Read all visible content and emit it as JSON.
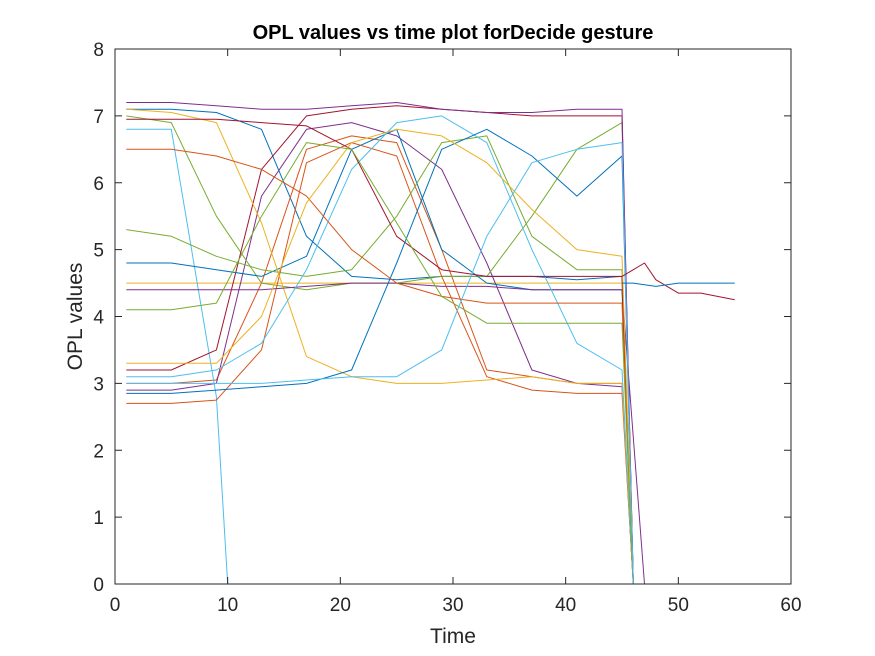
{
  "chart_data": {
    "type": "line",
    "title": "OPL values vs time plot forDecide gesture",
    "xlabel": "Time",
    "ylabel": "OPL values",
    "xlim": [
      0,
      60
    ],
    "ylim": [
      0,
      8
    ],
    "xticks": [
      "0",
      "10",
      "20",
      "30",
      "40",
      "50",
      "60"
    ],
    "yticks": [
      "0",
      "1",
      "2",
      "3",
      "4",
      "5",
      "6",
      "7",
      "8"
    ],
    "grid": false,
    "legend": "none",
    "colors": [
      "#0072BD",
      "#D95319",
      "#EDB120",
      "#7E2F8E",
      "#77AC30",
      "#4DBEEE",
      "#A2142F"
    ],
    "series": [
      {
        "x": [
          1,
          5,
          9,
          13,
          17,
          21,
          25,
          29,
          33,
          37,
          41,
          45,
          46
        ],
        "values": [
          7.1,
          7.1,
          7.05,
          6.8,
          5.2,
          4.6,
          4.55,
          4.6,
          4.6,
          4.6,
          4.55,
          4.6,
          0
        ]
      },
      {
        "x": [
          1,
          5,
          9,
          13,
          17,
          21,
          25,
          29,
          33,
          37,
          41,
          45,
          46
        ],
        "values": [
          3.0,
          3.0,
          3.05,
          4.5,
          6.5,
          6.7,
          6.6,
          5.0,
          3.2,
          3.1,
          3.0,
          3.0,
          0
        ]
      },
      {
        "x": [
          1,
          5,
          9,
          13,
          17,
          21,
          25,
          29,
          33,
          37,
          41,
          45,
          46
        ],
        "values": [
          4.5,
          4.5,
          4.5,
          4.5,
          4.5,
          4.5,
          4.5,
          4.5,
          4.5,
          4.5,
          4.5,
          4.5,
          0
        ]
      },
      {
        "x": [
          1,
          5,
          9,
          13,
          17,
          21,
          25,
          29,
          33,
          37,
          41,
          45,
          46
        ],
        "values": [
          2.9,
          2.9,
          3.0,
          5.8,
          6.8,
          6.9,
          6.7,
          6.2,
          4.8,
          3.2,
          3.0,
          2.95,
          0
        ]
      },
      {
        "x": [
          1,
          5,
          9,
          13,
          17,
          21,
          25,
          29,
          33,
          37,
          41,
          45,
          46
        ],
        "values": [
          7.0,
          6.9,
          5.5,
          4.5,
          4.4,
          4.5,
          4.5,
          4.6,
          4.6,
          5.5,
          6.5,
          6.9,
          0
        ]
      },
      {
        "x": [
          1,
          5,
          9,
          10,
          20,
          30,
          40,
          45
        ],
        "values": [
          6.8,
          6.8,
          2.8,
          0,
          0,
          0,
          0,
          0
        ]
      },
      {
        "x": [
          1,
          5,
          9,
          13,
          17,
          21,
          25,
          29,
          33,
          37,
          41,
          45,
          46
        ],
        "values": [
          3.2,
          3.2,
          3.5,
          6.2,
          7.0,
          7.1,
          7.15,
          7.1,
          7.05,
          7.0,
          7.0,
          7.0,
          0
        ]
      },
      {
        "x": [
          1,
          5,
          9,
          13,
          17,
          21,
          25,
          29,
          33,
          37,
          41,
          45,
          46
        ],
        "values": [
          4.8,
          4.8,
          4.7,
          4.6,
          4.9,
          6.5,
          6.8,
          5.0,
          4.5,
          4.4,
          4.4,
          4.4,
          0
        ]
      },
      {
        "x": [
          1,
          5,
          9,
          13,
          17,
          21,
          25,
          29,
          33,
          37,
          41,
          45,
          46
        ],
        "values": [
          2.7,
          2.7,
          2.75,
          3.5,
          6.3,
          6.6,
          6.4,
          4.6,
          3.1,
          2.9,
          2.85,
          2.85,
          0
        ]
      },
      {
        "x": [
          1,
          5,
          9,
          13,
          17,
          21,
          25,
          29,
          33,
          37,
          41,
          45,
          46
        ],
        "values": [
          7.1,
          7.05,
          6.9,
          5.4,
          3.4,
          3.1,
          3.0,
          3.0,
          3.05,
          3.1,
          3.0,
          3.0,
          0
        ]
      },
      {
        "x": [
          1,
          5,
          9,
          13,
          17,
          21,
          25,
          29,
          33,
          37,
          41,
          45,
          47
        ],
        "values": [
          4.4,
          4.4,
          4.4,
          4.4,
          4.45,
          4.5,
          4.5,
          4.45,
          4.45,
          4.4,
          4.4,
          4.4,
          0
        ]
      },
      {
        "x": [
          1,
          5,
          9,
          13,
          17,
          21,
          25,
          29,
          33,
          37,
          41,
          45,
          46
        ],
        "values": [
          5.3,
          5.2,
          4.9,
          4.7,
          4.6,
          4.7,
          5.5,
          6.6,
          6.7,
          5.2,
          4.7,
          4.7,
          0
        ]
      },
      {
        "x": [
          1,
          5,
          9,
          13,
          17,
          21,
          25,
          29,
          33,
          37,
          41,
          45,
          46
        ],
        "values": [
          3.1,
          3.1,
          3.2,
          3.6,
          4.7,
          6.2,
          6.9,
          7.0,
          6.6,
          5.0,
          3.6,
          3.2,
          0
        ]
      },
      {
        "x": [
          1,
          5,
          9,
          13,
          17,
          21,
          25,
          29,
          33,
          37,
          41,
          45,
          46
        ],
        "values": [
          6.95,
          6.95,
          6.95,
          6.9,
          6.85,
          6.5,
          5.2,
          4.7,
          4.6,
          4.6,
          4.6,
          4.6,
          0
        ]
      },
      {
        "x": [
          1,
          5,
          9,
          13,
          17,
          21,
          25,
          29,
          33,
          37,
          41,
          45,
          46
        ],
        "values": [
          2.85,
          2.85,
          2.9,
          2.95,
          3.0,
          3.2,
          4.8,
          6.5,
          6.8,
          6.4,
          5.8,
          6.4,
          0
        ]
      },
      {
        "x": [
          1,
          5,
          9,
          13,
          17,
          21,
          25,
          29,
          33,
          37,
          41,
          45,
          46
        ],
        "values": [
          6.5,
          6.5,
          6.4,
          6.2,
          5.8,
          5.0,
          4.5,
          4.3,
          4.2,
          4.2,
          4.2,
          4.2,
          0
        ]
      },
      {
        "x": [
          1,
          5,
          9,
          13,
          17,
          21,
          25,
          29,
          33,
          37,
          41,
          45,
          46
        ],
        "values": [
          3.3,
          3.3,
          3.3,
          4.0,
          5.7,
          6.6,
          6.8,
          6.7,
          6.3,
          5.6,
          5.0,
          4.9,
          0
        ]
      },
      {
        "x": [
          1,
          5,
          9,
          13,
          17,
          21,
          25,
          29,
          33,
          37,
          41,
          45,
          46
        ],
        "values": [
          7.2,
          7.2,
          7.15,
          7.1,
          7.1,
          7.15,
          7.2,
          7.1,
          7.05,
          7.05,
          7.1,
          7.1,
          0
        ]
      },
      {
        "x": [
          1,
          5,
          9,
          13,
          17,
          21,
          25,
          29,
          33,
          37,
          41,
          45,
          46
        ],
        "values": [
          4.1,
          4.1,
          4.2,
          5.5,
          6.6,
          6.5,
          5.4,
          4.3,
          3.9,
          3.9,
          3.9,
          3.9,
          0
        ]
      },
      {
        "x": [
          1,
          5,
          9,
          13,
          17,
          21,
          25,
          29,
          33,
          37,
          41,
          45,
          46
        ],
        "values": [
          3.0,
          3.0,
          3.0,
          3.0,
          3.05,
          3.1,
          3.1,
          3.5,
          5.2,
          6.3,
          6.5,
          6.6,
          0
        ]
      },
      {
        "x": [
          45,
          46,
          47,
          48,
          50,
          52,
          55
        ],
        "values": [
          4.6,
          4.7,
          4.8,
          4.55,
          4.35,
          4.35,
          4.25
        ]
      },
      {
        "x": [
          45,
          46,
          48,
          50,
          52,
          55
        ],
        "values": [
          4.5,
          4.5,
          4.45,
          4.5,
          4.5,
          4.5
        ]
      },
      {
        "x": [
          47,
          50,
          55
        ],
        "values": [
          0,
          0,
          0
        ]
      }
    ]
  }
}
